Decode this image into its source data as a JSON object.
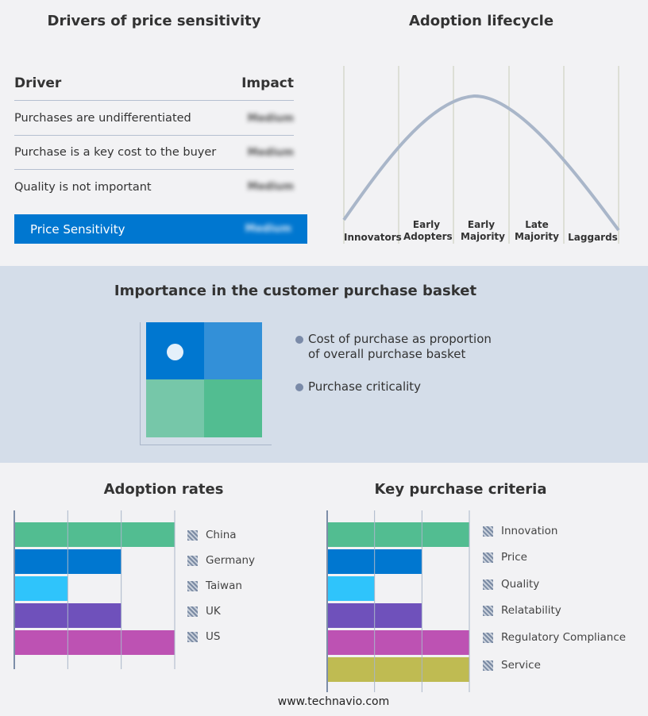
{
  "drivers": {
    "title": "Drivers of price sensitivity",
    "col_driver": "Driver",
    "col_impact": "Impact",
    "rows": [
      {
        "driver": "Purchases are undifferentiated",
        "impact": "Medium"
      },
      {
        "driver": "Purchase is a key cost to the buyer",
        "impact": "Medium"
      },
      {
        "driver": "Quality is not important",
        "impact": "Medium"
      }
    ],
    "summary": {
      "label": "Price Sensitivity",
      "impact": "Medium"
    },
    "accent": "#0077d0"
  },
  "lifecycle": {
    "title": "Adoption lifecycle",
    "stages": [
      "Innovators",
      "Early Adopters",
      "Early Majority",
      "Late Majority",
      "Laggards"
    ]
  },
  "basket": {
    "title": "Importance in the customer purchase basket",
    "bullets": [
      "Cost of purchase as proportion of overall purchase basket",
      "Purchase criticality"
    ],
    "quadrant_colors": [
      "#0077d0",
      "#3390d8",
      "#76c7a9",
      "#52bd91"
    ]
  },
  "chart_data": [
    {
      "type": "bar",
      "orientation": "horizontal",
      "title": "Adoption rates",
      "categories": [
        "China",
        "Germany",
        "Taiwan",
        "UK",
        "US"
      ],
      "values": [
        3,
        2,
        1,
        2,
        3
      ],
      "xlim": [
        0,
        3
      ],
      "grid": true,
      "legend": "right",
      "colors": [
        "#52bd91",
        "#0077d0",
        "#2fc4fb",
        "#6f51bb",
        "#bd52b3"
      ]
    },
    {
      "type": "bar",
      "orientation": "horizontal",
      "title": "Key purchase criteria",
      "categories": [
        "Innovation",
        "Price",
        "Quality",
        "Relatability",
        "Regulatory Compliance",
        "Service"
      ],
      "values": [
        3,
        2,
        1,
        2,
        3,
        3
      ],
      "xlim": [
        0,
        3
      ],
      "grid": true,
      "legend": "right",
      "colors": [
        "#52bd91",
        "#0077d0",
        "#2fc4fb",
        "#6f51bb",
        "#bd52b3",
        "#bfbb52"
      ]
    }
  ],
  "footer": "www.technavio.com"
}
